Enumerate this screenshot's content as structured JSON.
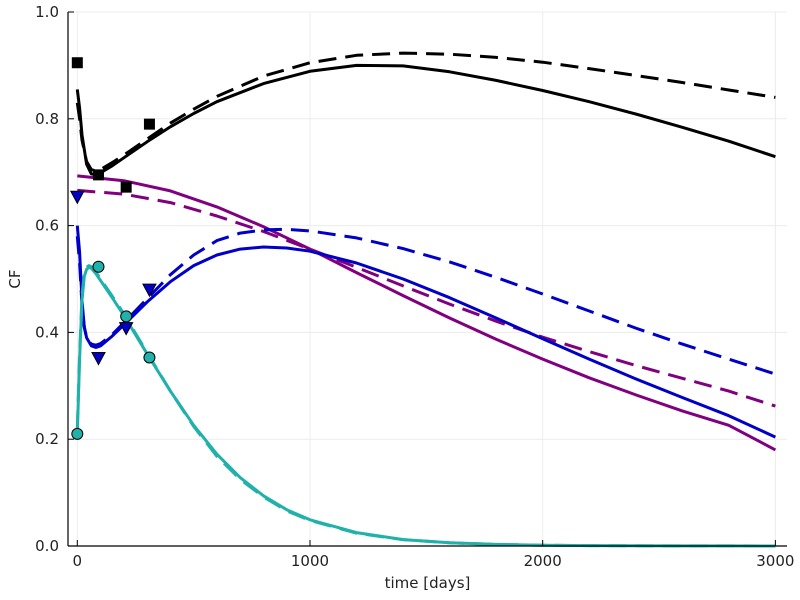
{
  "chart_data": {
    "type": "line",
    "title": "",
    "xlabel": "time [days]",
    "ylabel": "CF",
    "xlim": [
      -40,
      3050
    ],
    "ylim": [
      0.0,
      1.0
    ],
    "grid": true,
    "legend": "none",
    "x_ticks": [
      {
        "value": 0,
        "label": "0"
      },
      {
        "value": 1000,
        "label": "1000"
      },
      {
        "value": 2000,
        "label": "2000"
      },
      {
        "value": 3000,
        "label": "3000"
      }
    ],
    "y_ticks": [
      {
        "value": 0.0,
        "label": "0.0"
      },
      {
        "value": 0.2,
        "label": "0.2"
      },
      {
        "value": 0.4,
        "label": "0.4"
      },
      {
        "value": 0.6,
        "label": "0.6"
      },
      {
        "value": 0.8,
        "label": "0.8"
      },
      {
        "value": 1.0,
        "label": "1.0"
      }
    ],
    "series": [
      {
        "color": "#000000",
        "style": "solid",
        "x": [
          0,
          10,
          20,
          40,
          60,
          80,
          100,
          150,
          200,
          300,
          400,
          500,
          600,
          800,
          1000,
          1200,
          1400,
          1600,
          1800,
          2000,
          2200,
          2400,
          2600,
          2800,
          3000
        ],
        "y": [
          0.855,
          0.82,
          0.77,
          0.715,
          0.697,
          0.695,
          0.699,
          0.712,
          0.727,
          0.757,
          0.785,
          0.81,
          0.832,
          0.866,
          0.889,
          0.9,
          0.899,
          0.888,
          0.872,
          0.853,
          0.832,
          0.809,
          0.784,
          0.758,
          0.729
        ]
      },
      {
        "color": "#000000",
        "style": "dashed",
        "x": [
          0,
          10,
          20,
          40,
          60,
          80,
          100,
          150,
          200,
          300,
          400,
          500,
          600,
          800,
          1000,
          1200,
          1400,
          1600,
          1800,
          2000,
          2200,
          2400,
          2600,
          2800,
          3000
        ],
        "y": [
          0.83,
          0.8,
          0.76,
          0.72,
          0.705,
          0.702,
          0.705,
          0.718,
          0.732,
          0.762,
          0.792,
          0.818,
          0.842,
          0.88,
          0.905,
          0.919,
          0.923,
          0.921,
          0.915,
          0.906,
          0.894,
          0.881,
          0.868,
          0.854,
          0.84
        ]
      },
      {
        "color": "#800080",
        "style": "solid",
        "x": [
          0,
          200,
          400,
          600,
          800,
          1000,
          1200,
          1400,
          1600,
          1800,
          2000,
          2200,
          2400,
          2600,
          2800,
          3000
        ],
        "y": [
          0.693,
          0.684,
          0.665,
          0.635,
          0.598,
          0.556,
          0.512,
          0.469,
          0.427,
          0.387,
          0.35,
          0.315,
          0.283,
          0.253,
          0.226,
          0.18
        ]
      },
      {
        "color": "#800080",
        "style": "dashed",
        "x": [
          0,
          200,
          400,
          600,
          800,
          1000,
          1200,
          1400,
          1600,
          1800,
          2000,
          2200,
          2400,
          2600,
          2800,
          3000
        ],
        "y": [
          0.666,
          0.659,
          0.643,
          0.618,
          0.589,
          0.556,
          0.522,
          0.487,
          0.453,
          0.421,
          0.391,
          0.364,
          0.338,
          0.314,
          0.29,
          0.262
        ]
      },
      {
        "color": "#0000c8",
        "style": "solid",
        "x": [
          0,
          10,
          20,
          30,
          40,
          60,
          80,
          100,
          150,
          200,
          300,
          400,
          500,
          600,
          700,
          800,
          900,
          1000,
          1200,
          1400,
          1600,
          1800,
          2000,
          2200,
          2400,
          2600,
          2800,
          3000
        ],
        "y": [
          0.6,
          0.55,
          0.46,
          0.41,
          0.39,
          0.375,
          0.372,
          0.375,
          0.393,
          0.414,
          0.457,
          0.495,
          0.525,
          0.545,
          0.556,
          0.56,
          0.558,
          0.552,
          0.53,
          0.5,
          0.465,
          0.427,
          0.388,
          0.35,
          0.313,
          0.278,
          0.244,
          0.204
        ]
      },
      {
        "color": "#0000c8",
        "style": "dashed",
        "x": [
          0,
          10,
          20,
          30,
          40,
          60,
          80,
          100,
          150,
          200,
          300,
          400,
          500,
          600,
          700,
          800,
          900,
          1000,
          1200,
          1400,
          1600,
          1800,
          2000,
          2200,
          2400,
          2600,
          2800,
          3000
        ],
        "y": [
          0.58,
          0.53,
          0.45,
          0.41,
          0.39,
          0.378,
          0.376,
          0.379,
          0.396,
          0.418,
          0.463,
          0.508,
          0.545,
          0.572,
          0.586,
          0.592,
          0.593,
          0.59,
          0.577,
          0.557,
          0.532,
          0.503,
          0.472,
          0.44,
          0.408,
          0.378,
          0.35,
          0.322
        ]
      },
      {
        "color": "#20b2aa",
        "style": "solid",
        "x": [
          0,
          10,
          20,
          30,
          40,
          50,
          60,
          80,
          100,
          150,
          200,
          300,
          400,
          500,
          600,
          700,
          800,
          900,
          1000,
          1200,
          1400,
          1600,
          1800,
          2000,
          2200,
          2400,
          2600,
          2800,
          3000
        ],
        "y": [
          0.21,
          0.35,
          0.46,
          0.505,
          0.518,
          0.522,
          0.52,
          0.51,
          0.497,
          0.465,
          0.432,
          0.36,
          0.29,
          0.226,
          0.172,
          0.128,
          0.094,
          0.068,
          0.049,
          0.025,
          0.012,
          0.006,
          0.003,
          0.0015,
          0.0008,
          0.0004,
          0.0002,
          0.0001,
          0.0
        ]
      },
      {
        "color": "#20b2aa",
        "style": "dashed",
        "x": [
          0,
          10,
          20,
          30,
          40,
          50,
          60,
          80,
          100,
          150,
          200,
          300,
          400,
          500,
          600,
          700,
          800,
          900,
          1000,
          1200,
          1400,
          1600,
          1800,
          2000,
          2200,
          2400,
          2600,
          2800,
          3000
        ],
        "y": [
          0.22,
          0.36,
          0.47,
          0.51,
          0.522,
          0.525,
          0.523,
          0.513,
          0.5,
          0.468,
          0.435,
          0.362,
          0.29,
          0.224,
          0.168,
          0.125,
          0.092,
          0.066,
          0.048,
          0.024,
          0.012,
          0.006,
          0.003,
          0.0015,
          0.0008,
          0.0004,
          0.0002,
          0.0001,
          0.0
        ]
      }
    ],
    "scatter": [
      {
        "marker": "square",
        "color": "#000000",
        "points": [
          {
            "x": 0,
            "y": 0.905
          },
          {
            "x": 91,
            "y": 0.695
          },
          {
            "x": 210,
            "y": 0.672
          },
          {
            "x": 310,
            "y": 0.79
          }
        ]
      },
      {
        "marker": "triangle-down",
        "color": "#0000c8",
        "points": [
          {
            "x": 0,
            "y": 0.654
          },
          {
            "x": 91,
            "y": 0.352
          },
          {
            "x": 210,
            "y": 0.408
          },
          {
            "x": 310,
            "y": 0.48
          }
        ]
      },
      {
        "marker": "circle",
        "color": "#20b2aa",
        "points": [
          {
            "x": 0,
            "y": 0.21
          },
          {
            "x": 91,
            "y": 0.523
          },
          {
            "x": 210,
            "y": 0.43
          },
          {
            "x": 310,
            "y": 0.353
          }
        ]
      }
    ]
  }
}
